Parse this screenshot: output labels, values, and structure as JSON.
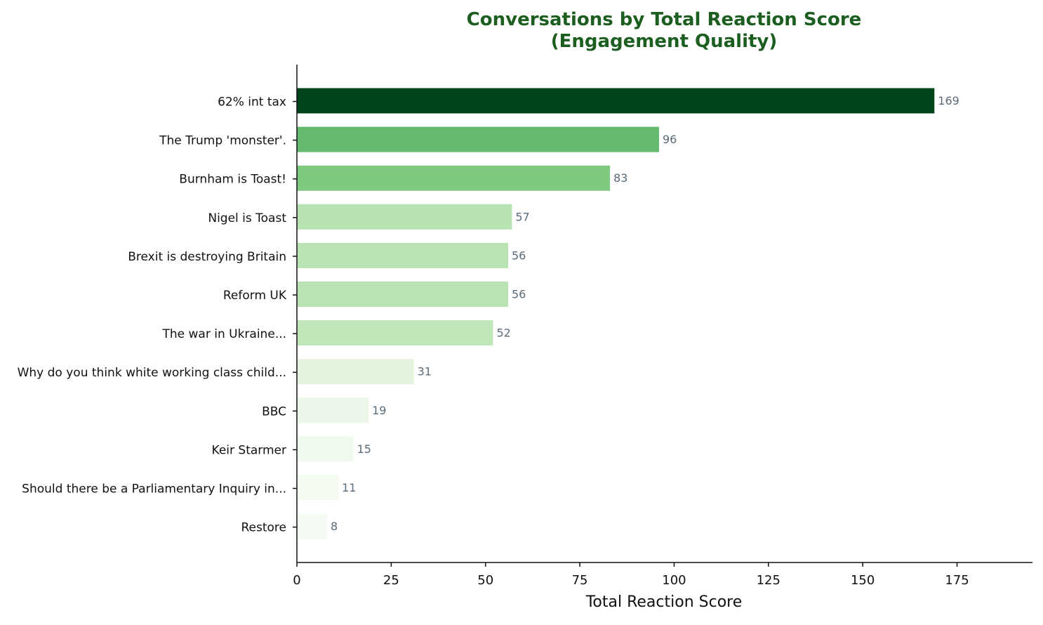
{
  "chart_data": {
    "type": "bar",
    "orientation": "horizontal",
    "title_line1": "Conversations by Total Reaction Score",
    "title_line2": "(Engagement Quality)",
    "xlabel": "Total Reaction Score",
    "ylabel": "",
    "xlim": [
      0,
      195
    ],
    "xticks": [
      0,
      25,
      50,
      75,
      100,
      125,
      150,
      175
    ],
    "grid": false,
    "categories": [
      "62% int tax",
      "The Trump 'monster'.",
      "Burnham is Toast!",
      "Nigel is Toast",
      "Brexit is destroying Britain",
      "Reform UK",
      "The war in Ukraine...",
      "Why do you think white working class child...",
      "BBC",
      "Keir Starmer",
      "Should there be a Parliamentary Inquiry in...",
      "Restore"
    ],
    "values": [
      169,
      96,
      83,
      57,
      56,
      56,
      52,
      31,
      19,
      15,
      11,
      8
    ],
    "colors": [
      "#00441b",
      "#63b96c",
      "#7fc97e",
      "#b7e2b1",
      "#b9e3b2",
      "#b9e3b2",
      "#c0e6b9",
      "#e1f3dc",
      "#ecf7e9",
      "#f0f9ed",
      "#f3faf0",
      "#f5fbf2"
    ]
  }
}
